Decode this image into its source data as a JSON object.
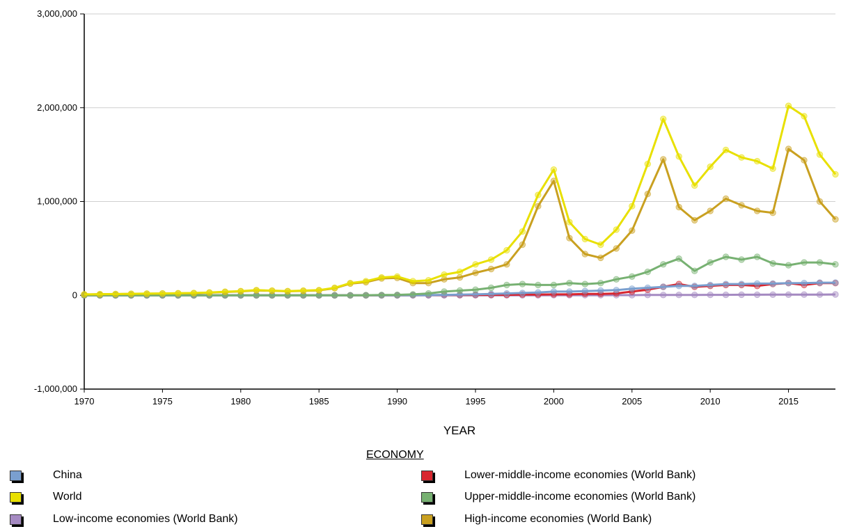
{
  "colors": {
    "China": "#7a9fcf",
    "World": "#e8e000",
    "Low": "#a58ac2",
    "LowerMiddle": "#d8262f",
    "UpperMiddle": "#77b172",
    "High": "#c9a020"
  },
  "chart_data": {
    "type": "line",
    "xlabel": "YEAR",
    "ylabel": "",
    "ylim": [
      -1000000,
      3000000
    ],
    "xlim": [
      1970,
      2018
    ],
    "y_ticks": [
      "3,000,000",
      "2,000,000",
      "1,000,000",
      "0",
      "-1,000,000"
    ],
    "y_tick_values": [
      3000000,
      2000000,
      1000000,
      0,
      -1000000
    ],
    "x_ticks": [
      "1970",
      "1975",
      "1980",
      "1985",
      "1990",
      "1995",
      "2000",
      "2005",
      "2010",
      "2015"
    ],
    "x_tick_values": [
      1970,
      1975,
      1980,
      1985,
      1990,
      1995,
      2000,
      2005,
      2010,
      2015
    ],
    "grid": "horizontal",
    "legend_title": "ECONOMY",
    "legend_placement": "bottom",
    "x": [
      1970,
      1971,
      1972,
      1973,
      1974,
      1975,
      1976,
      1977,
      1978,
      1979,
      1980,
      1981,
      1982,
      1983,
      1984,
      1985,
      1986,
      1987,
      1988,
      1989,
      1990,
      1991,
      1992,
      1993,
      1994,
      1995,
      1996,
      1997,
      1998,
      1999,
      2000,
      2001,
      2002,
      2003,
      2004,
      2005,
      2006,
      2007,
      2008,
      2009,
      2010,
      2011,
      2012,
      2013,
      2014,
      2015,
      2016,
      2017,
      2018
    ],
    "series": [
      {
        "name": "World",
        "color_key": "World",
        "values": [
          10000,
          12000,
          14000,
          16000,
          18000,
          20000,
          22000,
          25000,
          30000,
          38000,
          45000,
          55000,
          50000,
          45000,
          50000,
          55000,
          80000,
          130000,
          150000,
          190000,
          200000,
          150000,
          160000,
          220000,
          250000,
          330000,
          380000,
          480000,
          680000,
          1070000,
          1340000,
          780000,
          600000,
          540000,
          700000,
          950000,
          1400000,
          1880000,
          1480000,
          1170000,
          1370000,
          1550000,
          1470000,
          1430000,
          1350000,
          2020000,
          1910000,
          1500000,
          1290000
        ]
      },
      {
        "name": "High-income economies (World Bank)",
        "color_key": "High",
        "values": [
          9000,
          11000,
          13000,
          15000,
          17000,
          19000,
          21000,
          23000,
          28000,
          35000,
          42000,
          52000,
          48000,
          43000,
          47000,
          52000,
          75000,
          125000,
          140000,
          180000,
          185000,
          130000,
          130000,
          170000,
          190000,
          240000,
          280000,
          330000,
          540000,
          950000,
          1220000,
          610000,
          440000,
          400000,
          500000,
          690000,
          1080000,
          1450000,
          940000,
          800000,
          900000,
          1030000,
          960000,
          900000,
          880000,
          1560000,
          1440000,
          1000000,
          810000
        ]
      },
      {
        "name": "Upper-middle-income economies (World Bank)",
        "color_key": "UpperMiddle",
        "values": [
          0,
          0,
          0,
          0,
          0,
          0,
          0,
          0,
          0,
          0,
          0,
          0,
          0,
          0,
          0,
          0,
          0,
          0,
          1000,
          3000,
          5000,
          10000,
          20000,
          40000,
          50000,
          60000,
          80000,
          110000,
          120000,
          110000,
          110000,
          130000,
          120000,
          130000,
          170000,
          200000,
          250000,
          330000,
          390000,
          260000,
          350000,
          410000,
          380000,
          410000,
          340000,
          320000,
          350000,
          350000,
          330000
        ]
      },
      {
        "name": "China",
        "color_key": "China",
        "values": [
          0,
          0,
          0,
          0,
          0,
          0,
          0,
          0,
          0,
          0,
          0,
          0,
          0,
          0,
          0,
          0,
          0,
          0,
          0,
          0,
          0,
          1000,
          2000,
          5000,
          8000,
          10000,
          15000,
          20000,
          25000,
          30000,
          40000,
          40000,
          45000,
          50000,
          55000,
          70000,
          80000,
          90000,
          100000,
          100000,
          110000,
          120000,
          120000,
          125000,
          125000,
          130000,
          130000,
          135000,
          135000
        ]
      },
      {
        "name": "Lower-middle-income economies (World Bank)",
        "color_key": "LowerMiddle",
        "values": [
          0,
          0,
          0,
          0,
          0,
          0,
          0,
          0,
          0,
          0,
          0,
          0,
          0,
          0,
          0,
          0,
          0,
          0,
          0,
          0,
          0,
          1000,
          2000,
          3000,
          3000,
          4000,
          5000,
          5000,
          8000,
          8000,
          10000,
          10000,
          15000,
          15000,
          20000,
          40000,
          60000,
          90000,
          120000,
          90000,
          100000,
          110000,
          110000,
          100000,
          120000,
          130000,
          110000,
          130000,
          130000
        ]
      },
      {
        "name": "Low-income economies (World Bank)",
        "color_key": "Low",
        "values": [
          0,
          0,
          0,
          0,
          0,
          0,
          0,
          0,
          0,
          0,
          0,
          0,
          0,
          0,
          0,
          0,
          0,
          0,
          0,
          0,
          0,
          0,
          0,
          0,
          0,
          0,
          0,
          0,
          0,
          0,
          1000,
          1000,
          1000,
          1000,
          2000,
          2000,
          3000,
          3000,
          4000,
          4000,
          5000,
          5000,
          6000,
          6000,
          7000,
          7000,
          8000,
          8000,
          9000
        ]
      }
    ]
  },
  "legend": [
    {
      "label": "China",
      "color_key": "China"
    },
    {
      "label": "World",
      "color_key": "World"
    },
    {
      "label": "Low-income economies (World Bank)",
      "color_key": "Low"
    },
    {
      "label": "Lower-middle-income economies (World Bank)",
      "color_key": "LowerMiddle"
    },
    {
      "label": "Upper-middle-income economies (World Bank)",
      "color_key": "UpperMiddle"
    },
    {
      "label": "High-income economies (World Bank)",
      "color_key": "High"
    }
  ]
}
